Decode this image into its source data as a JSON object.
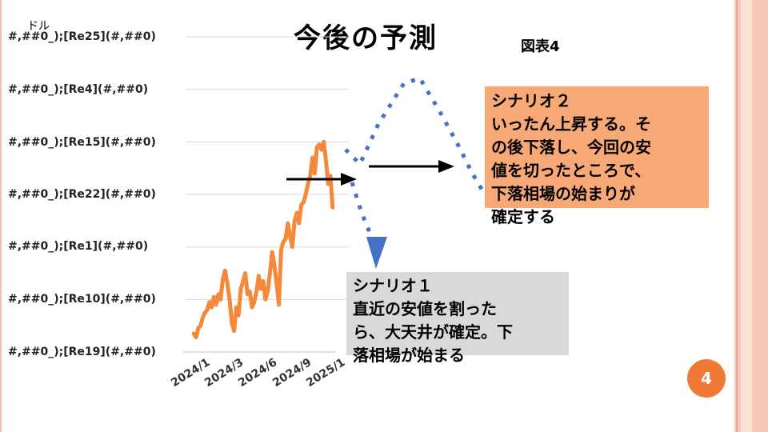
{
  "slide": {
    "title": "今後の予測",
    "figure_label": "図表4",
    "unit_label": "ドル",
    "page_number": "4"
  },
  "scenario2": {
    "lines": [
      "シナリオ２",
      "いったん上昇する。そ",
      "の後下落し、今回の安",
      "値を切ったところで、",
      "下落相場の始まりが",
      "確定する"
    ]
  },
  "scenario1": {
    "lines": [
      "シナリオ１",
      "直近の安値を割った",
      "ら、大天井が確定。下",
      "落相場が始まる"
    ]
  },
  "colors": {
    "price_line": "#f5883a",
    "scenario_dots": "#4472c4",
    "arrow_black": "#000000",
    "scenario2_bg": "#f7a877",
    "scenario1_bg": "#d9d9d9",
    "badge": "#f07a35",
    "gridline": "#d9d9d9"
  },
  "chart_data": {
    "type": "line",
    "ytick_labels": [
      "#,##0_);[Re25](#,##0)",
      "#,##0_);[Re4](#,##0)",
      "#,##0_);[Re15](#,##0)",
      "#,##0_);[Re22](#,##0)",
      "#,##0_);[Re1](#,##0)",
      "#,##0_);[Re10](#,##0)",
      "#,##0_);[Re19](#,##0)"
    ],
    "xtick_labels": [
      "2024/1",
      "2024/3",
      "2024/6",
      "2024/9",
      "2025/1"
    ],
    "x_range": [
      0,
      13
    ],
    "y_range": [
      0,
      6
    ],
    "grid": true,
    "series": [
      {
        "x": [
          0.3,
          0.5,
          0.7,
          0.9,
          1.1,
          1.3,
          1.5,
          1.7,
          1.9,
          2.1,
          2.3,
          2.5,
          2.7,
          2.9,
          3.1,
          3.3,
          3.5,
          3.7,
          3.9,
          4.1,
          4.3,
          4.5,
          4.7,
          4.9,
          5.1,
          5.3,
          5.5,
          5.7,
          5.9,
          6.1,
          6.3,
          6.5,
          6.7,
          6.9,
          7.1,
          7.3,
          7.5,
          7.7,
          7.9,
          8.1,
          8.3,
          8.5,
          8.7,
          8.9,
          9.1,
          9.3,
          9.5,
          9.7,
          9.9,
          10.1,
          10.3,
          10.5,
          10.7,
          10.9,
          11.1,
          11.3,
          11.5,
          11.7,
          11.9,
          12.1,
          12.3,
          12.5,
          12.7
        ],
        "y": [
          0.35,
          0.28,
          0.45,
          0.5,
          0.65,
          0.75,
          0.8,
          0.95,
          0.85,
          1.05,
          0.9,
          1.1,
          1.0,
          1.4,
          1.55,
          1.3,
          1.0,
          0.55,
          0.4,
          0.85,
          0.7,
          1.2,
          1.35,
          1.5,
          1.1,
          1.15,
          0.85,
          0.95,
          1.15,
          1.45,
          1.2,
          1.35,
          1.0,
          1.15,
          1.5,
          1.9,
          1.65,
          1.3,
          0.9,
          1.95,
          2.1,
          2.15,
          2.45,
          2.2,
          2.0,
          2.5,
          2.65,
          2.45,
          2.8,
          2.85,
          3.0,
          3.2,
          3.35,
          3.7,
          3.4,
          3.9,
          3.95,
          3.85,
          4.0,
          3.65,
          3.2,
          3.35,
          2.75
        ]
      }
    ]
  }
}
